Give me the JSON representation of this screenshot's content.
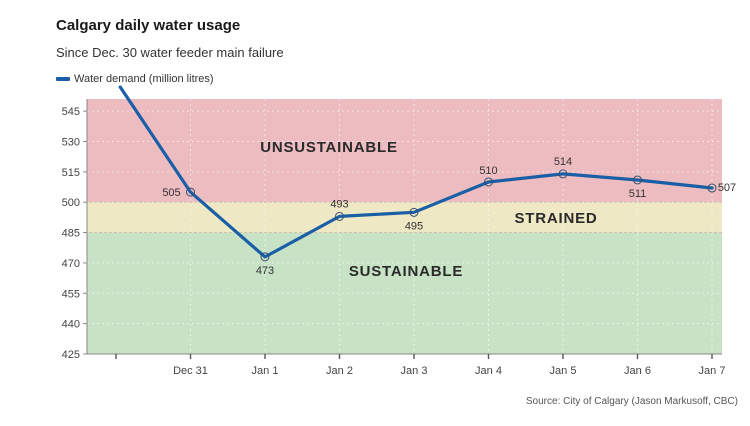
{
  "title": "Calgary daily water usage",
  "subtitle": "Since Dec. 30 water feeder main failure",
  "source": "Source: City of Calgary (Jason Markusoff, CBC)",
  "colors": {
    "line": "#1a5fa6",
    "unsustainable": "#ecbcc1",
    "strained": "#efe8c4",
    "sustainable": "#c7e2c5"
  },
  "chart_data": {
    "type": "line",
    "title": "Calgary daily water usage",
    "subtitle": "Since Dec. 30 water feeder main failure",
    "x": [
      "",
      "Dec 31",
      "Jan 1",
      "Jan 2",
      "Jan 3",
      "Jan 4",
      "Jan 5",
      "Jan 6",
      "Jan 7"
    ],
    "ylim": [
      425,
      551
    ],
    "yticks": [
      425,
      440,
      455,
      470,
      485,
      500,
      515,
      530,
      545
    ],
    "grid": true,
    "legend": "top-left",
    "series": [
      {
        "name": "Water demand (million litres)",
        "values": [
          560,
          505,
          473,
          493,
          495,
          510,
          514,
          511,
          507
        ],
        "labels": [
          "",
          "505",
          "473",
          "493",
          "495",
          "510",
          "514",
          "511",
          "507"
        ]
      }
    ],
    "zones": [
      {
        "label": "UNSUSTAINABLE",
        "from": 500,
        "to": 551
      },
      {
        "label": "STRAINED",
        "from": 485,
        "to": 500
      },
      {
        "label": "SUSTAINABLE",
        "from": 425,
        "to": 485
      }
    ]
  }
}
